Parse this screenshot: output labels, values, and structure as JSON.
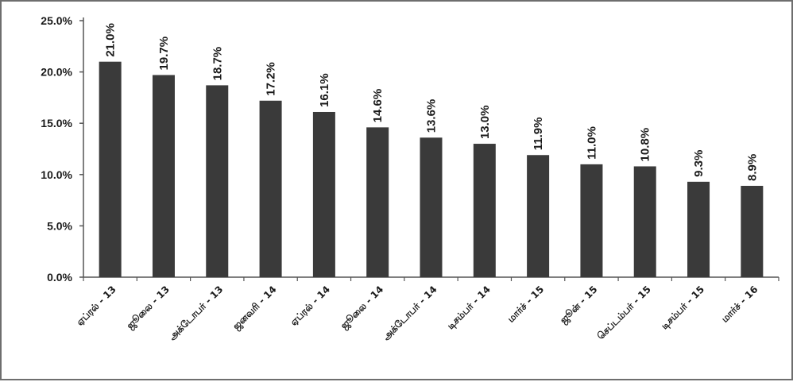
{
  "chart_data": {
    "type": "bar",
    "categories": [
      "ஏப்ரல் - 13",
      "ஜூலை - 13",
      "அக்டோபர் - 13",
      "ஜனவரி - 14",
      "ஏப்ரல் - 14",
      "ஜூலை - 14",
      "அக்டோபர் - 14",
      "டிசம்பர் - 14",
      "மார்ச் - 15",
      "ஜூன் - 15",
      "செப்டம்பர் - 15",
      "டிசம்பர் - 15",
      "மார்ச் - 16"
    ],
    "values": [
      21.0,
      19.7,
      18.7,
      17.2,
      16.1,
      14.6,
      13.6,
      13.0,
      11.9,
      11.0,
      10.8,
      9.3,
      8.9
    ],
    "data_labels": [
      "21.0%",
      "19.7%",
      "18.7%",
      "17.2%",
      "16.1%",
      "14.6%",
      "13.6%",
      "13.0%",
      "11.9%",
      "11.0%",
      "10.8%",
      "9.3%",
      "8.9%"
    ],
    "yticks": [
      {
        "value": 0,
        "label": "0.0%"
      },
      {
        "value": 5,
        "label": "5.0%"
      },
      {
        "value": 10,
        "label": "10.0%"
      },
      {
        "value": 15,
        "label": "15.0%"
      },
      {
        "value": 20,
        "label": "20.0%"
      },
      {
        "value": 25,
        "label": "25.0%"
      }
    ],
    "ylim": [
      0,
      25
    ],
    "title": "",
    "xlabel": "",
    "ylabel": "",
    "grid": false,
    "legend": "none",
    "colors": {
      "bar": "#3a3a3a",
      "axis": "#555555",
      "text": "#1a1a1a",
      "border": "#6e6e6e"
    }
  }
}
